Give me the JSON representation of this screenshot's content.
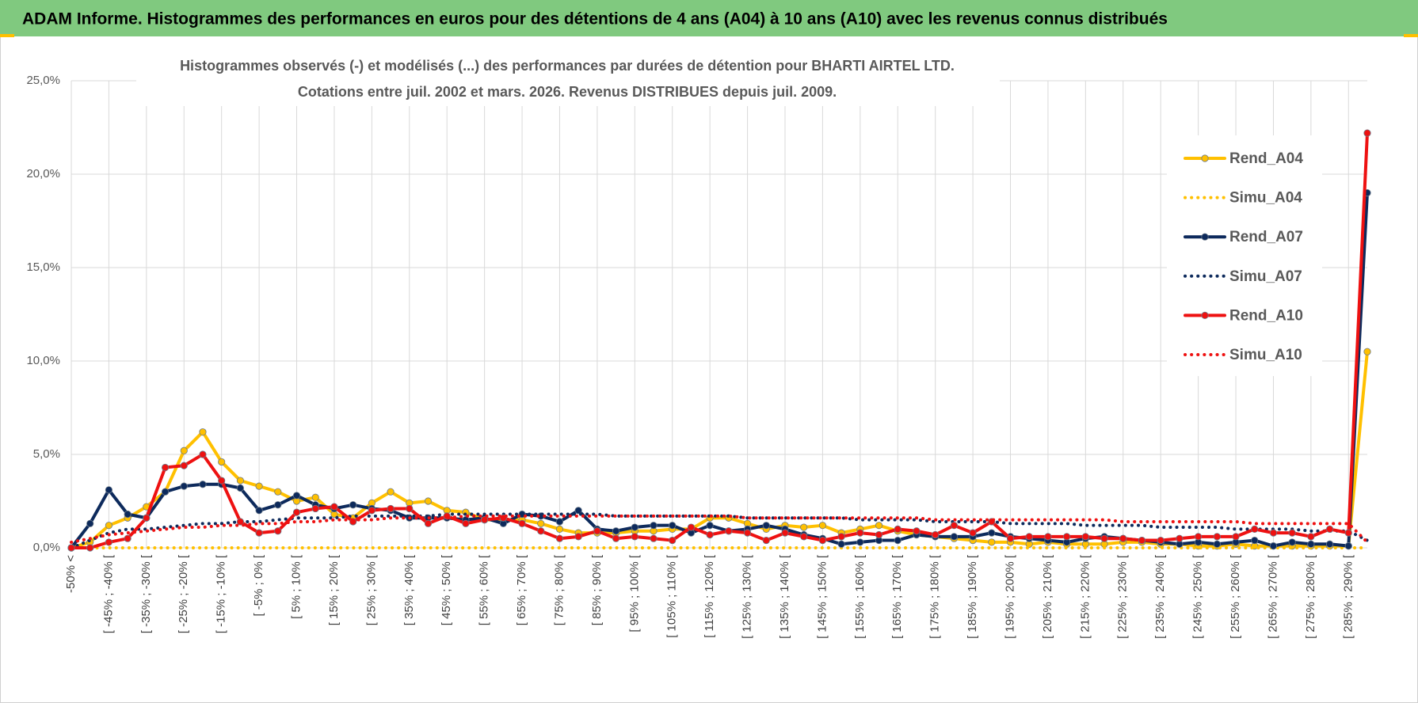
{
  "header": {
    "title": "ADAM Informe. Histogrammes des performances en euros pour des détentions de 4 ans (A04) à 10 ans (A10) avec les revenus connus distribués"
  },
  "chart_data": {
    "type": "line",
    "title": "Histogrammes observés (-) et modélisés (...) des performances par durées de détention pour BHARTI AIRTEL LTD.",
    "subtitle": "Cotations entre juil. 2002 et mars. 2026. Revenus DISTRIBUES depuis juil. 2009.",
    "categories": [
      "-50% <",
      null,
      "[ -45% ; -40% [",
      null,
      "[ -35% ; -30% [",
      null,
      "[ -25% ; -20% [",
      null,
      "[ -15% ; -10% [",
      null,
      "[ -5% ; 0% [",
      null,
      "[ 5% ; 10% [",
      null,
      "[ 15% ; 20% [",
      null,
      "[ 25% ; 30% [",
      null,
      "[ 35% ; 40% [",
      null,
      "[ 45% ; 50% [",
      null,
      "[ 55% ; 60% [",
      null,
      "[ 65% ; 70% [",
      null,
      "[ 75% ; 80% [",
      null,
      "[ 85% ; 90% [",
      null,
      "[ 95% ; 100% [",
      null,
      "[ 105% ; 110% [",
      null,
      "[ 115% ; 120% [",
      null,
      "[ 125% ; 130% [",
      null,
      "[ 135% ; 140% [",
      null,
      "[ 145% ; 150% [",
      null,
      "[ 155% ; 160% [",
      null,
      "[ 165% ; 170% [",
      null,
      "[ 175% ; 180% [",
      null,
      "[ 185% ; 190% [",
      null,
      "[ 195% ; 200% [",
      null,
      "[ 205% ; 210% [",
      null,
      "[ 215% ; 220% [",
      null,
      "[ 225% ; 230% [",
      null,
      "[ 235% ; 240% [",
      null,
      "[ 245% ; 250% [",
      null,
      "[ 255% ; 260% [",
      null,
      "[ 265% ; 270% [",
      null,
      "[ 275% ; 280% [",
      null,
      "[ 285% ; 290% [",
      null
    ],
    "series": [
      {
        "name": "Rend_A04",
        "color": "#ffc000",
        "style": "solid",
        "values": [
          0,
          0.3,
          1.2,
          1.6,
          2.2,
          3.0,
          5.2,
          6.2,
          4.6,
          3.6,
          3.3,
          3.0,
          2.5,
          2.7,
          1.8,
          1.6,
          2.4,
          3.0,
          2.4,
          2.5,
          2.0,
          1.9,
          1.5,
          1.5,
          1.5,
          1.3,
          1.0,
          0.8,
          0.8,
          0.8,
          0.9,
          0.9,
          1.0,
          1.0,
          1.6,
          1.6,
          1.3,
          1.0,
          1.2,
          1.1,
          1.2,
          0.8,
          1.0,
          1.2,
          0.9,
          0.7,
          0.6,
          0.5,
          0.4,
          0.3,
          0.3,
          0.2,
          0.3,
          0.2,
          0.2,
          0.2,
          0.3,
          0.3,
          0.2,
          0.2,
          0.1,
          0.1,
          0.2,
          0.1,
          0.1,
          0.1,
          0.1,
          0.1,
          0.1,
          10.5
        ]
      },
      {
        "name": "Simu_A04",
        "color": "#ffc000",
        "style": "dotted",
        "values": [
          0,
          0,
          0,
          0,
          0,
          0,
          0,
          0,
          0,
          0,
          0,
          0,
          0,
          0,
          0,
          0,
          0,
          0,
          0,
          0,
          0,
          0,
          0,
          0,
          0,
          0,
          0,
          0,
          0,
          0,
          0,
          0,
          0,
          0,
          0,
          0,
          0,
          0,
          0,
          0,
          0,
          0,
          0,
          0,
          0,
          0,
          0,
          0,
          0,
          0,
          0,
          0,
          0,
          0,
          0,
          0,
          0,
          0,
          0,
          0,
          0,
          0,
          0,
          0,
          0,
          0,
          0,
          0,
          0,
          0
        ]
      },
      {
        "name": "Rend_A07",
        "color": "#0d2a5c",
        "style": "solid",
        "values": [
          0,
          1.3,
          3.1,
          1.8,
          1.6,
          3.0,
          3.3,
          3.4,
          3.4,
          3.2,
          2.0,
          2.3,
          2.8,
          2.3,
          2.1,
          2.3,
          2.1,
          2.0,
          1.6,
          1.6,
          1.6,
          1.5,
          1.6,
          1.3,
          1.8,
          1.7,
          1.4,
          2.0,
          1.0,
          0.9,
          1.1,
          1.2,
          1.2,
          0.8,
          1.2,
          0.9,
          1.0,
          1.2,
          1.0,
          0.7,
          0.5,
          0.2,
          0.3,
          0.4,
          0.4,
          0.7,
          0.6,
          0.6,
          0.6,
          0.8,
          0.6,
          0.5,
          0.4,
          0.3,
          0.5,
          0.6,
          0.5,
          0.4,
          0.3,
          0.2,
          0.3,
          0.2,
          0.3,
          0.4,
          0.1,
          0.3,
          0.2,
          0.2,
          0.1,
          19.0
        ]
      },
      {
        "name": "Simu_A07",
        "color": "#0d2a5c",
        "style": "dotted",
        "values": [
          0,
          0.4,
          0.8,
          1.0,
          1.0,
          1.1,
          1.2,
          1.3,
          1.3,
          1.4,
          1.4,
          1.5,
          1.6,
          1.6,
          1.6,
          1.7,
          1.7,
          1.7,
          1.7,
          1.7,
          1.8,
          1.8,
          1.8,
          1.8,
          1.8,
          1.8,
          1.8,
          1.8,
          1.8,
          1.7,
          1.7,
          1.7,
          1.7,
          1.7,
          1.7,
          1.7,
          1.6,
          1.6,
          1.6,
          1.6,
          1.6,
          1.6,
          1.5,
          1.5,
          1.5,
          1.5,
          1.4,
          1.4,
          1.4,
          1.4,
          1.3,
          1.3,
          1.3,
          1.3,
          1.2,
          1.2,
          1.2,
          1.2,
          1.1,
          1.1,
          1.1,
          1.1,
          1.0,
          1.0,
          1.0,
          1.0,
          0.9,
          0.9,
          0.9,
          0.4
        ]
      },
      {
        "name": "Rend_A10",
        "color": "#ee1111",
        "style": "solid",
        "values": [
          0,
          0,
          0.3,
          0.5,
          1.6,
          4.3,
          4.4,
          5.0,
          3.6,
          1.4,
          0.8,
          0.9,
          1.9,
          2.1,
          2.2,
          1.4,
          2.0,
          2.1,
          2.1,
          1.3,
          1.7,
          1.3,
          1.5,
          1.6,
          1.3,
          0.9,
          0.5,
          0.6,
          0.9,
          0.5,
          0.6,
          0.5,
          0.4,
          1.1,
          0.7,
          0.9,
          0.8,
          0.4,
          0.8,
          0.6,
          0.4,
          0.6,
          0.8,
          0.7,
          1.0,
          0.9,
          0.7,
          1.2,
          0.8,
          1.4,
          0.5,
          0.6,
          0.6,
          0.6,
          0.6,
          0.5,
          0.5,
          0.4,
          0.4,
          0.5,
          0.6,
          0.6,
          0.6,
          1.0,
          0.8,
          0.8,
          0.6,
          1.0,
          0.8,
          22.2
        ]
      },
      {
        "name": "Simu_A10",
        "color": "#ee1111",
        "style": "dotted",
        "values": [
          0.3,
          0.5,
          0.7,
          0.8,
          0.9,
          1.0,
          1.1,
          1.1,
          1.2,
          1.2,
          1.3,
          1.3,
          1.4,
          1.4,
          1.5,
          1.5,
          1.5,
          1.6,
          1.6,
          1.6,
          1.6,
          1.7,
          1.7,
          1.7,
          1.7,
          1.7,
          1.7,
          1.7,
          1.7,
          1.7,
          1.7,
          1.7,
          1.7,
          1.7,
          1.7,
          1.7,
          1.6,
          1.6,
          1.6,
          1.6,
          1.6,
          1.6,
          1.6,
          1.6,
          1.6,
          1.6,
          1.5,
          1.5,
          1.5,
          1.5,
          1.5,
          1.5,
          1.5,
          1.5,
          1.5,
          1.5,
          1.4,
          1.4,
          1.4,
          1.4,
          1.4,
          1.4,
          1.4,
          1.3,
          1.3,
          1.3,
          1.3,
          1.3,
          1.3,
          0.3
        ]
      }
    ],
    "ylim": [
      0,
      25
    ],
    "yticks": [
      {
        "value": 0,
        "label": "0,0%"
      },
      {
        "value": 5,
        "label": "5,0%"
      },
      {
        "value": 10,
        "label": "10,0%"
      },
      {
        "value": 15,
        "label": "15,0%"
      },
      {
        "value": 20,
        "label": "20,0%"
      },
      {
        "value": 25,
        "label": "25,0%"
      }
    ],
    "grid": true,
    "legend": "right"
  }
}
